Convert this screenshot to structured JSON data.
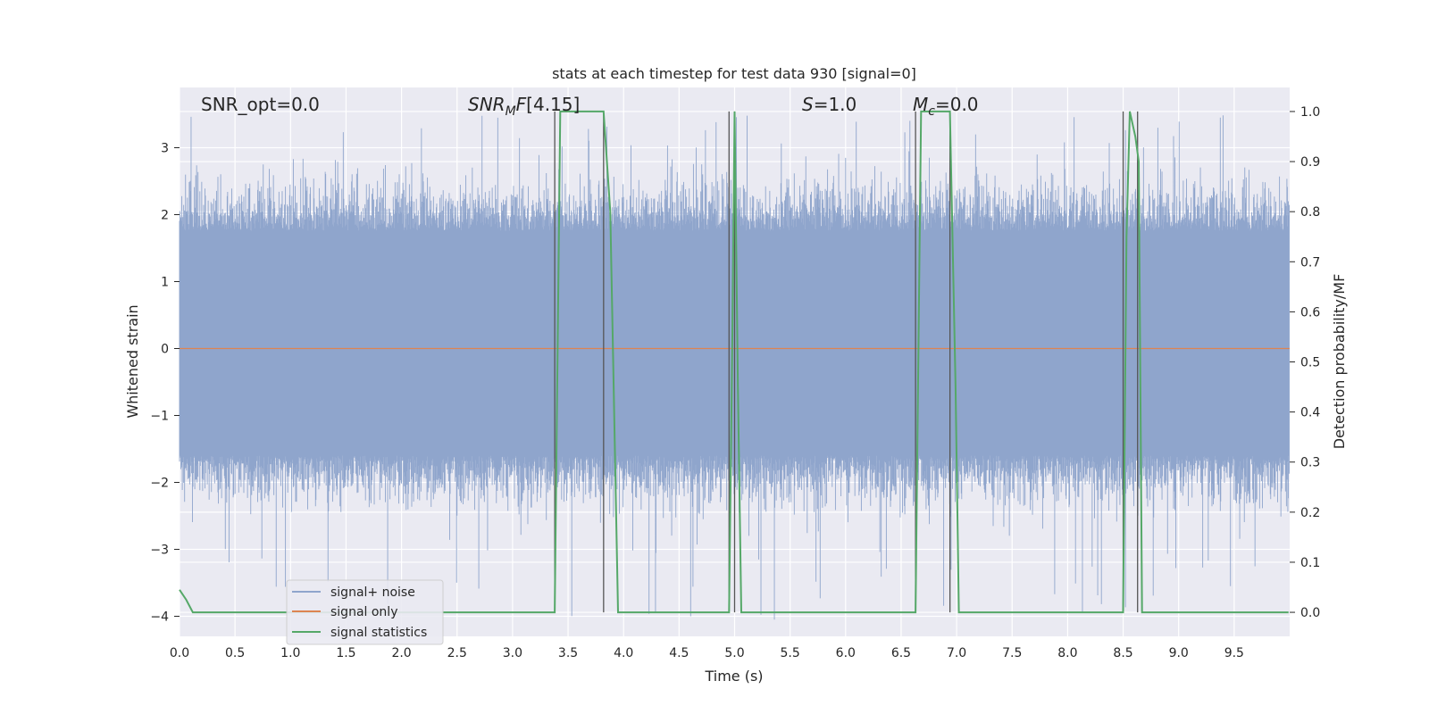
{
  "chart_data": {
    "type": "line",
    "title": "stats at each timestep for test data 930 [signal=0]",
    "xlabel": "Time (s)",
    "ylabel": "Whitened strain",
    "y2label": "Detection probability/MF",
    "xlim": [
      0.0,
      10.0
    ],
    "ylim": [
      -4.3,
      3.9
    ],
    "y2lim": [
      -0.048,
      1.048
    ],
    "grid": true,
    "legend_position": "lower-left",
    "x_ticks": [
      "0.0",
      "0.5",
      "1.0",
      "1.5",
      "2.0",
      "2.5",
      "3.0",
      "3.5",
      "4.0",
      "4.5",
      "5.0",
      "5.5",
      "6.0",
      "6.5",
      "7.0",
      "7.5",
      "8.0",
      "8.5",
      "9.0",
      "9.5"
    ],
    "y_ticks": [
      "3",
      "2",
      "1",
      "0",
      "−1",
      "−2",
      "−3",
      "−4"
    ],
    "y2_ticks": [
      "1.0",
      "0.9",
      "0.8",
      "0.7",
      "0.6",
      "0.5",
      "0.4",
      "0.3",
      "0.2",
      "0.1",
      "0.0"
    ],
    "annotations": {
      "snr_opt": "SNR_opt=0.0",
      "snr_mf": "[4.15]",
      "s_value": "=1.0",
      "mc_value": "=0.0"
    },
    "series": [
      {
        "name": "signal+ noise",
        "color": "#8fa5cc",
        "kind": "noise-band",
        "typical_range": [
          -2.0,
          2.2
        ],
        "extreme_range": [
          -4.1,
          3.5
        ]
      },
      {
        "name": "signal only",
        "color": "#dd8452",
        "x": [
          0.0,
          10.0
        ],
        "y": [
          0.0,
          0.0
        ]
      },
      {
        "name": "signal statistics",
        "color": "#55a868",
        "axis": "right",
        "x": [
          0.0,
          0.06,
          0.12,
          3.38,
          3.43,
          3.82,
          3.88,
          3.95,
          4.95,
          4.98,
          5.0,
          5.03,
          5.06,
          6.63,
          6.68,
          6.94,
          6.99,
          7.02,
          7.05,
          8.5,
          8.53,
          8.56,
          8.61,
          8.64,
          8.67,
          9.99
        ],
        "y": [
          0.045,
          0.025,
          0.0,
          0.0,
          1.0,
          1.0,
          0.8,
          0.0,
          0.0,
          0.55,
          1.0,
          0.45,
          0.0,
          0.0,
          1.0,
          1.0,
          0.45,
          0.0,
          0.0,
          0.0,
          0.75,
          1.0,
          0.95,
          0.9,
          0.0,
          0.0
        ]
      }
    ],
    "threshold_markers": {
      "color": "#555555",
      "x": [
        3.38,
        3.82,
        4.95,
        5.0,
        6.63,
        6.94,
        8.5,
        8.63
      ]
    }
  }
}
